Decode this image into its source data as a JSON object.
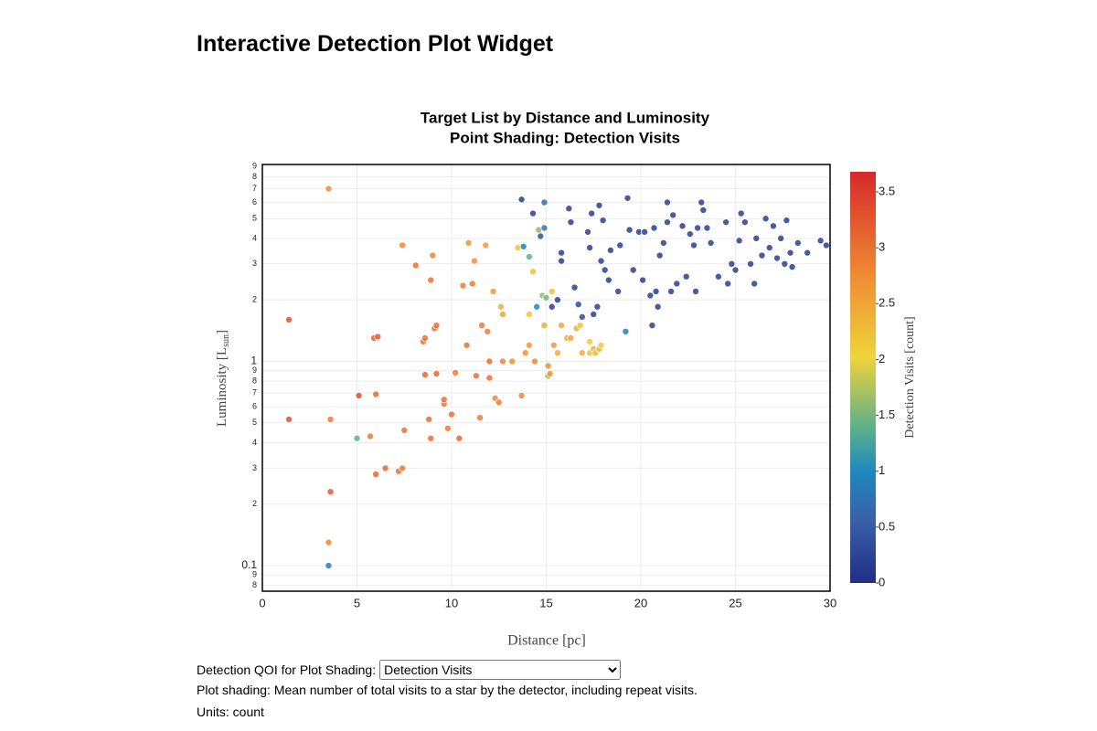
{
  "header": {
    "title": "Interactive Detection Plot Widget"
  },
  "chart_data": {
    "type": "scatter",
    "title": "Target List by Distance and Luminosity",
    "subtitle": "Point Shading: Detection Visits",
    "x_label": "Distance [pc]",
    "y_label": {
      "text": "Luminosity [L",
      "sub": "sun",
      "close": "]"
    },
    "xlim": [
      0,
      30
    ],
    "xticks": [
      0,
      5,
      10,
      15,
      20,
      25,
      30
    ],
    "ylim": [
      0.075,
      9.2
    ],
    "log_y": true,
    "grid": true,
    "yticks": [
      {
        "value": 0.08,
        "label": "8"
      },
      {
        "value": 0.09,
        "label": "9"
      },
      0.1,
      {
        "value": 0.2,
        "label": "2"
      },
      {
        "value": 0.3,
        "label": "3"
      },
      {
        "value": 0.4,
        "label": "4"
      },
      {
        "value": 0.5,
        "label": "5"
      },
      {
        "value": 0.6,
        "label": "6"
      },
      {
        "value": 0.7,
        "label": "7"
      },
      {
        "value": 0.8,
        "label": "8"
      },
      {
        "value": 0.9,
        "label": "9"
      },
      1,
      2,
      3,
      4,
      5,
      6,
      7,
      8,
      9
    ],
    "x": [
      3.5,
      1.4,
      1.4,
      3.6,
      3.6,
      3.5,
      3.5,
      5.0,
      5.1,
      5.7,
      5.9,
      6.1,
      6.0,
      6.0,
      6.5,
      7.2,
      7.4,
      7.5,
      7.4,
      8.1,
      8.5,
      8.6,
      8.6,
      8.8,
      8.9,
      8.9,
      9.0,
      9.1,
      9.2,
      9.2,
      9.6,
      9.6,
      9.8,
      10.0,
      10.2,
      10.4,
      10.6,
      10.9,
      10.8,
      11.1,
      11.2,
      11.3,
      11.5,
      11.6,
      11.8,
      11.9,
      12.0,
      12.0,
      12.2,
      12.3,
      12.5,
      12.6,
      12.7,
      12.7,
      13.2,
      13.5,
      13.7,
      13.9,
      14.1,
      14.1,
      14.3,
      14.4,
      14.5,
      14.9,
      15.1,
      15.1,
      15.2,
      15.3,
      15.4,
      15.6,
      15.8,
      16.1,
      16.3,
      16.6,
      16.8,
      16.9,
      17.3,
      17.3,
      17.5,
      17.6,
      17.8,
      17.9,
      14.8,
      15.0,
      13.7,
      13.8,
      14.1,
      14.3,
      14.6,
      14.7,
      14.9,
      14.9,
      15.3,
      15.6,
      15.8,
      15.8,
      16.2,
      16.3,
      16.5,
      16.7,
      16.9,
      17.2,
      17.3,
      17.4,
      17.5,
      17.7,
      17.8,
      17.9,
      18.0,
      18.1,
      18.3,
      18.4,
      18.8,
      18.9,
      19.2,
      19.3,
      19.4,
      19.6,
      19.9,
      20.1,
      20.2,
      20.5,
      20.6,
      20.7,
      20.9,
      21.0,
      21.2,
      21.4,
      21.4,
      21.6,
      21.7,
      21.9,
      22.2,
      22.4,
      22.6,
      22.8,
      22.9,
      23.0,
      23.2,
      23.3,
      23.5,
      23.7,
      24.1,
      24.5,
      24.6,
      24.8,
      25.0,
      25.2,
      25.3,
      25.5,
      25.8,
      26.0,
      26.1,
      26.4,
      26.6,
      26.8,
      27.0,
      27.2,
      27.4,
      27.6,
      27.7,
      27.9,
      28.0,
      28.3,
      28.8,
      29.5,
      29.8,
      20.8
    ],
    "values": [
      7.0,
      1.6,
      0.52,
      0.52,
      0.23,
      0.13,
      0.1,
      0.42,
      0.68,
      0.43,
      1.3,
      1.32,
      0.69,
      0.28,
      0.3,
      0.29,
      0.3,
      0.46,
      3.7,
      2.95,
      1.25,
      1.3,
      0.86,
      0.52,
      0.42,
      2.5,
      3.3,
      1.45,
      1.5,
      0.87,
      0.62,
      0.65,
      0.47,
      0.55,
      0.88,
      0.42,
      2.35,
      3.8,
      1.2,
      2.4,
      3.1,
      0.85,
      0.53,
      1.5,
      3.7,
      1.4,
      1.0,
      0.83,
      2.2,
      0.66,
      0.63,
      1.85,
      1.7,
      1.0,
      1.0,
      3.6,
      0.68,
      1.1,
      1.7,
      1.2,
      2.75,
      1.0,
      1.85,
      1.5,
      0.95,
      0.85,
      0.87,
      2.2,
      1.2,
      1.1,
      1.5,
      1.3,
      1.3,
      1.45,
      1.5,
      1.1,
      1.25,
      1.1,
      1.15,
      1.1,
      1.15,
      1.2,
      2.1,
      2.05,
      6.2,
      3.65,
      3.25,
      5.3,
      4.4,
      4.1,
      6.0,
      4.5,
      1.85,
      2.0,
      3.4,
      3.1,
      5.6,
      4.8,
      2.3,
      1.9,
      1.65,
      4.3,
      3.6,
      5.3,
      1.7,
      1.85,
      5.8,
      3.1,
      4.9,
      2.8,
      2.5,
      3.5,
      2.2,
      3.7,
      1.4,
      6.3,
      4.4,
      2.8,
      4.3,
      2.5,
      4.3,
      2.1,
      1.5,
      4.5,
      1.85,
      3.3,
      3.8,
      4.8,
      6.0,
      2.2,
      5.2,
      2.4,
      4.6,
      2.6,
      4.2,
      3.7,
      2.2,
      4.5,
      6.0,
      5.5,
      4.5,
      3.8,
      2.6,
      4.8,
      2.4,
      3.0,
      2.8,
      3.9,
      5.3,
      4.8,
      3.0,
      2.4,
      4.0,
      3.3,
      5.0,
      3.6,
      4.6,
      3.2,
      4.0,
      3.0,
      4.9,
      3.4,
      2.9,
      3.8,
      3.4,
      3.9,
      3.7,
      2.2
    ],
    "color_values": [
      2.7,
      3.3,
      3.3,
      2.9,
      3.2,
      2.8,
      0.9,
      1.4,
      3.3,
      2.9,
      3.2,
      3.2,
      3.1,
      3.1,
      3.1,
      3.0,
      2.9,
      3.0,
      2.8,
      3.0,
      3.0,
      3.0,
      3.1,
      3.0,
      3.0,
      3.0,
      2.8,
      3.1,
      3.0,
      3.1,
      3.0,
      3.0,
      2.9,
      3.0,
      2.9,
      3.1,
      2.9,
      2.7,
      3.0,
      2.9,
      2.7,
      3.0,
      2.9,
      2.9,
      2.6,
      2.9,
      3.0,
      3.0,
      2.6,
      2.8,
      2.9,
      2.4,
      2.5,
      2.8,
      2.7,
      2.2,
      2.8,
      2.7,
      2.2,
      2.6,
      2.2,
      2.8,
      1.0,
      2.4,
      2.7,
      2.7,
      2.6,
      2.2,
      2.6,
      2.4,
      2.5,
      2.4,
      2.5,
      2.4,
      2.2,
      2.4,
      2.1,
      2.2,
      2.4,
      2.3,
      2.4,
      2.1,
      1.6,
      1.5,
      0.2,
      0.9,
      1.4,
      0.2,
      1.6,
      0.4,
      0.7,
      0.8,
      0.2,
      0.2,
      0.2,
      0.2,
      0.2,
      0.2,
      0.2,
      0.3,
      0.3,
      0.2,
      0.2,
      0.2,
      0.2,
      0.2,
      0.2,
      0.2,
      0.2,
      0.2,
      0.2,
      0.2,
      0.2,
      0.2,
      0.9,
      0.2,
      0.2,
      0.2,
      0.2,
      0.2,
      0.2,
      0.2,
      0.2,
      0.2,
      0.2,
      0.2,
      0.2,
      0.2,
      0.2,
      0.2,
      0.2,
      0.2,
      0.2,
      0.2,
      0.2,
      0.2,
      0.2,
      0.2,
      0.2,
      0.2,
      0.2,
      0.2,
      0.2,
      0.2,
      0.2,
      0.2,
      0.2,
      0.2,
      0.2,
      0.2,
      0.2,
      0.2,
      0.2,
      0.2,
      0.2,
      0.2,
      0.2,
      0.2,
      0.2,
      0.2,
      0.2,
      0.2,
      0.2,
      0.2,
      0.2,
      0.2,
      0.2,
      0.2
    ],
    "colorbar": {
      "title": "Detection Visits [count]",
      "lim": [
        0,
        3.68
      ],
      "ticks": [
        0,
        0.5,
        1,
        1.5,
        2,
        2.5,
        3,
        3.5
      ],
      "colorscale": [
        [
          0,
          "#1f2f86"
        ],
        [
          0.15,
          "#3a5fa8"
        ],
        [
          0.27,
          "#1e88c0"
        ],
        [
          0.38,
          "#5fb08a"
        ],
        [
          0.55,
          "#f0d43a"
        ],
        [
          0.75,
          "#f08a33"
        ],
        [
          1,
          "#d7282a"
        ]
      ]
    }
  },
  "controls": {
    "label": "Detection QOI for Plot Shading:",
    "selected": "Detection Visits",
    "description": "Plot shading: Mean number of total visits to a star by the detector, including repeat visits.",
    "units": "Units: count"
  }
}
